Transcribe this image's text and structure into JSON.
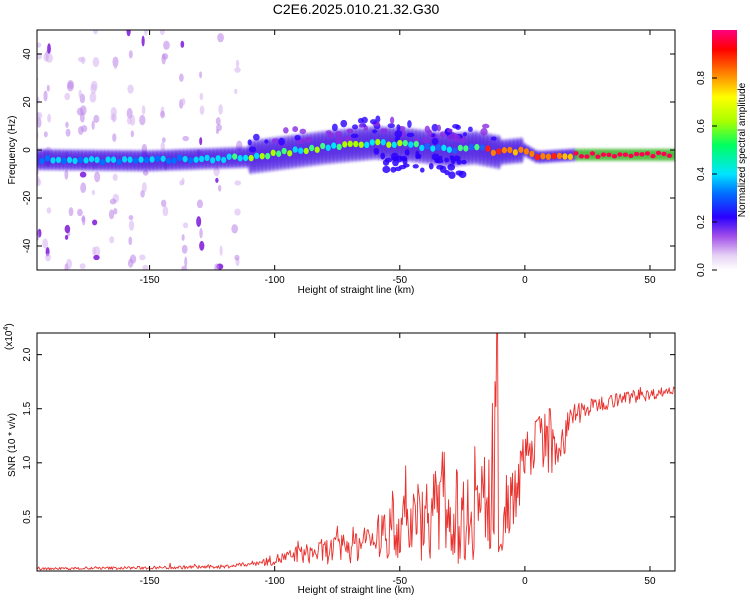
{
  "title": "C2E6.2025.010.21.32.G30",
  "chart_data": [
    {
      "type": "heatmap",
      "xlabel": "Height of straight line (km)",
      "ylabel": "Frequency (Hz)",
      "xlim": [
        -195,
        60
      ],
      "ylim": [
        -50,
        50
      ],
      "xticks": [
        -150,
        -100,
        -50,
        0,
        50
      ],
      "yticks": [
        -40,
        -20,
        0,
        20,
        40
      ],
      "colorbar": {
        "label": "Normalized spectral amplitude",
        "range": [
          0,
          1
        ],
        "ticks": [
          0.0,
          0.2,
          0.4,
          0.6,
          0.8
        ],
        "colors": [
          "#ffffff",
          "#d8b8f0",
          "#8a2be2",
          "#0000ff",
          "#00ffff",
          "#00ff00",
          "#ffff00",
          "#ff0000",
          "#ff00aa"
        ]
      },
      "band_center_hz": [
        {
          "x": -195,
          "y": -4
        },
        {
          "x": -150,
          "y": -4.5
        },
        {
          "x": -110,
          "y": -3
        },
        {
          "x": -95,
          "y": -1
        },
        {
          "x": -80,
          "y": 1
        },
        {
          "x": -60,
          "y": 3
        },
        {
          "x": -45,
          "y": 2
        },
        {
          "x": -30,
          "y": 0
        },
        {
          "x": -20,
          "y": 1
        },
        {
          "x": -10,
          "y": -1
        },
        {
          "x": 0,
          "y": 0
        },
        {
          "x": 5,
          "y": -3
        },
        {
          "x": 20,
          "y": -2
        },
        {
          "x": 60,
          "y": -2
        }
      ],
      "noise_region_x": [
        -195,
        -112
      ]
    },
    {
      "type": "line",
      "xlabel": "Height of straight line (km)",
      "ylabel": "SNR (10 * v/v)",
      "yscale_label": "(x10",
      "yscale_exp": "4",
      "xlim": [
        -195,
        60
      ],
      "ylim": [
        0,
        2.2
      ],
      "xticks": [
        -150,
        -100,
        -50,
        0,
        50
      ],
      "yticks": [
        0.5,
        1.0,
        1.5,
        2.0
      ],
      "ytick_labels": [
        "0.5",
        "1.0",
        "1.5",
        "2.0"
      ],
      "line_color": "#e8312d",
      "series_trend": [
        {
          "x": -195,
          "y": 0.02
        },
        {
          "x": -150,
          "y": 0.03
        },
        {
          "x": -120,
          "y": 0.04
        },
        {
          "x": -105,
          "y": 0.08
        },
        {
          "x": -90,
          "y": 0.15
        },
        {
          "x": -75,
          "y": 0.2
        },
        {
          "x": -60,
          "y": 0.3
        },
        {
          "x": -45,
          "y": 0.45
        },
        {
          "x": -35,
          "y": 0.55
        },
        {
          "x": -25,
          "y": 0.5
        },
        {
          "x": -15,
          "y": 0.65
        },
        {
          "x": -8,
          "y": 0.6
        },
        {
          "x": 0,
          "y": 1.0
        },
        {
          "x": 5,
          "y": 1.25
        },
        {
          "x": 10,
          "y": 1.1
        },
        {
          "x": 15,
          "y": 1.2
        },
        {
          "x": 20,
          "y": 1.45
        },
        {
          "x": 30,
          "y": 1.55
        },
        {
          "x": 40,
          "y": 1.6
        },
        {
          "x": 50,
          "y": 1.63
        },
        {
          "x": 60,
          "y": 1.68
        }
      ],
      "series_spread": [
        {
          "x": -195,
          "y": 0.01
        },
        {
          "x": -110,
          "y": 0.02
        },
        {
          "x": -90,
          "y": 0.08
        },
        {
          "x": -60,
          "y": 0.2
        },
        {
          "x": -40,
          "y": 0.4
        },
        {
          "x": -25,
          "y": 0.45
        },
        {
          "x": -10,
          "y": 0.5
        },
        {
          "x": 0,
          "y": 0.25
        },
        {
          "x": 15,
          "y": 0.2
        },
        {
          "x": 25,
          "y": 0.08
        },
        {
          "x": 60,
          "y": 0.04
        }
      ],
      "spikes": [
        {
          "x": -11,
          "y": 2.2
        },
        {
          "x": -13,
          "y": 1.55
        },
        {
          "x": -33,
          "y": 1.1
        },
        {
          "x": -20,
          "y": 1.15
        },
        {
          "x": 10,
          "y": 1.5
        },
        {
          "x": 8,
          "y": 1.45
        }
      ]
    }
  ]
}
